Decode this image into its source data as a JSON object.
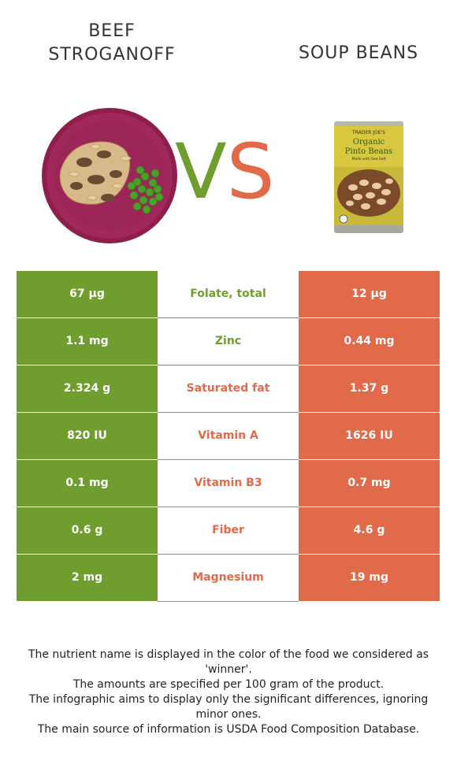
{
  "header": {
    "left_title": "BEEF STROGANOFF",
    "right_title": "SOUP BEANS",
    "vs_v": "V",
    "vs_s": "S"
  },
  "can_label": {
    "brand": "TRADER JOE'S",
    "line1": "Organic",
    "line2": "Pinto Beans",
    "line3": "Made with Sea Salt"
  },
  "colors": {
    "left": "#6f9e2e",
    "right": "#e06a4a"
  },
  "rows": [
    {
      "left": "67 µg",
      "nutrient": "Folate, total",
      "right": "12 µg",
      "winner": "left"
    },
    {
      "left": "1.1 mg",
      "nutrient": "Zinc",
      "right": "0.44 mg",
      "winner": "left"
    },
    {
      "left": "2.324 g",
      "nutrient": "Saturated fat",
      "right": "1.37 g",
      "winner": "right"
    },
    {
      "left": "820 IU",
      "nutrient": "Vitamin A",
      "right": "1626 IU",
      "winner": "right"
    },
    {
      "left": "0.1 mg",
      "nutrient": "Vitamin B3",
      "right": "0.7 mg",
      "winner": "right"
    },
    {
      "left": "0.6 g",
      "nutrient": "Fiber",
      "right": "4.6 g",
      "winner": "right"
    },
    {
      "left": "2 mg",
      "nutrient": "Magnesium",
      "right": "19 mg",
      "winner": "right"
    }
  ],
  "notes": [
    "The nutrient name is displayed in the color of the food we considered as 'winner'.",
    "The amounts are specified per 100 gram of the product.",
    "The infographic aims to display only the significant differences, ignoring minor ones.",
    "The main source of information is USDA Food Composition Database."
  ]
}
